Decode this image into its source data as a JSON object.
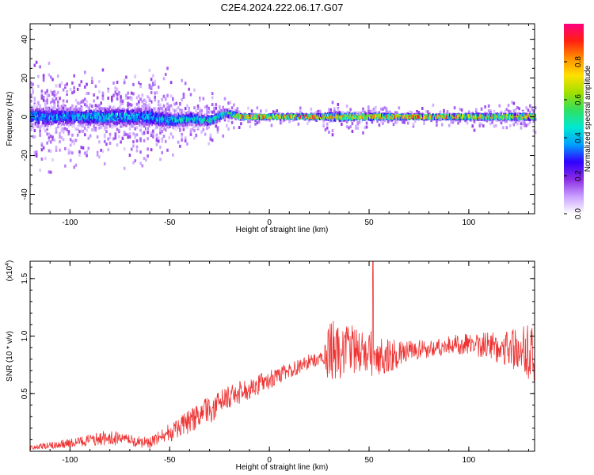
{
  "title": "C2E4.2024.222.06.17.G07",
  "chart_data": [
    {
      "type": "heatmap",
      "xlabel": "Height of straight line (km)",
      "ylabel": "Frequency (Hz)",
      "xlim": [
        -120,
        133
      ],
      "ylim": [
        -50,
        48
      ],
      "xticks": [
        "-100",
        "-50",
        "0",
        "50",
        "100"
      ],
      "yticks": [
        "-40",
        "-20",
        "0",
        "20",
        "40"
      ],
      "colorbar": {
        "label": "Normalized spectral amplitude",
        "range": [
          0,
          1
        ],
        "ticks": [
          "0.0",
          "0.2",
          "0.4",
          "0.6",
          "0.8"
        ],
        "colors": [
          "#ffffff",
          "#c9a0ff",
          "#8a2be2",
          "#3000ff",
          "#00a0ff",
          "#00e8d0",
          "#30e060",
          "#a0e000",
          "#ffe000",
          "#ff9000",
          "#ff2010",
          "#ff0080"
        ]
      },
      "profile": {
        "x": [
          -120,
          -100,
          -80,
          -60,
          -50,
          -40,
          -30,
          -22,
          -15,
          0,
          25,
          30,
          60,
          80,
          100,
          133
        ],
        "center_freq": [
          0,
          0,
          0,
          0,
          -2,
          -1,
          -2,
          2,
          0,
          0,
          0,
          0,
          0,
          0,
          0,
          0
        ],
        "spread": [
          8,
          7,
          7,
          8,
          6,
          5,
          4,
          3,
          2,
          1.5,
          1.5,
          3,
          2,
          1.5,
          2,
          2.5
        ],
        "peak_amplitude": [
          0.45,
          0.45,
          0.5,
          0.45,
          0.5,
          0.55,
          0.6,
          0.65,
          0.9,
          1.0,
          1.0,
          0.85,
          0.95,
          1.0,
          0.9,
          0.85
        ]
      }
    },
    {
      "type": "line",
      "xlabel": "Height of straight line (km)",
      "ylabel": "SNR (10 * v/v)",
      "multiplier": "(x10",
      "multiplier_exp": "4",
      "multiplier_close": ")",
      "xlim": [
        -120,
        133
      ],
      "ylim": [
        0,
        1.65
      ],
      "xticks": [
        "-100",
        "-50",
        "0",
        "50",
        "100"
      ],
      "yticks": [
        "0.5",
        "1.0",
        "1.5"
      ],
      "color": "#ee3333",
      "trend": {
        "x": [
          -120,
          -100,
          -80,
          -70,
          -60,
          -50,
          -40,
          -30,
          -20,
          -10,
          0,
          10,
          20,
          27,
          30,
          40,
          50,
          60,
          70,
          80,
          90,
          100,
          110,
          120,
          133
        ],
        "mean": [
          0.03,
          0.07,
          0.12,
          0.09,
          0.07,
          0.16,
          0.26,
          0.36,
          0.47,
          0.55,
          0.62,
          0.7,
          0.78,
          0.81,
          0.86,
          0.88,
          0.85,
          0.83,
          0.86,
          0.89,
          0.92,
          0.93,
          0.92,
          0.9,
          0.85
        ],
        "noise": [
          0.02,
          0.04,
          0.07,
          0.05,
          0.05,
          0.08,
          0.1,
          0.12,
          0.1,
          0.1,
          0.08,
          0.07,
          0.06,
          0.05,
          0.28,
          0.22,
          0.2,
          0.15,
          0.1,
          0.08,
          0.08,
          0.1,
          0.12,
          0.18,
          0.25
        ]
      },
      "peak": {
        "x": 52,
        "y": 1.65
      }
    }
  ]
}
